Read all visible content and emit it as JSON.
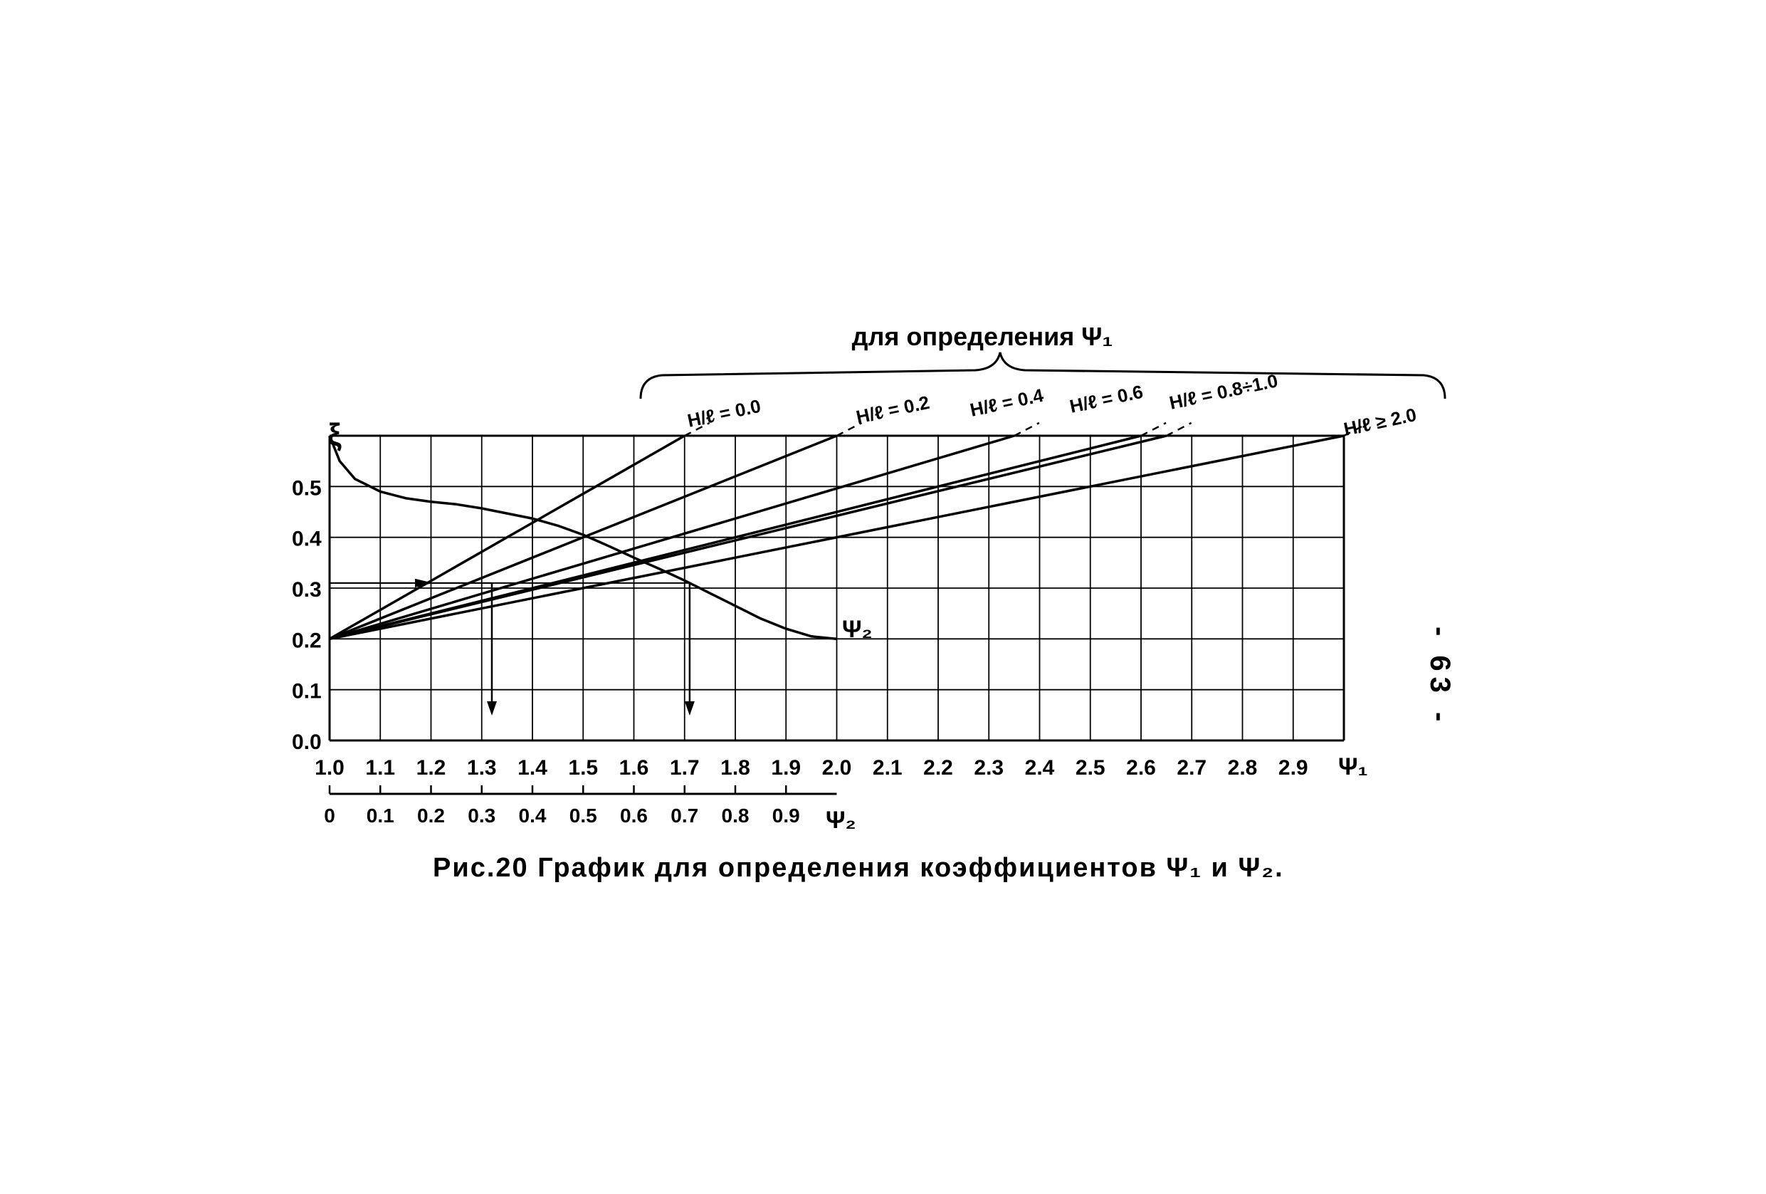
{
  "chart_data": {
    "type": "line",
    "title_top": "для определения Ψ₁",
    "ylabel": "ξ",
    "xlabel_psi1": "Ψ₁",
    "xlabel_psi2": "Ψ₂",
    "psi1_ticks": [
      "1.0",
      "1.1",
      "1.2",
      "1.3",
      "1.4",
      "1.5",
      "1.6",
      "1.7",
      "1.8",
      "1.9",
      "2.0",
      "2.1",
      "2.2",
      "2.3",
      "2.4",
      "2.5",
      "2.6",
      "2.7",
      "2.8",
      "2.9"
    ],
    "psi2_ticks": [
      "0",
      "0.1",
      "0.2",
      "0.3",
      "0.4",
      "0.5",
      "0.6",
      "0.7",
      "0.8",
      "0.9"
    ],
    "y_ticks": [
      "0.0",
      "0.1",
      "0.2",
      "0.3",
      "0.4",
      "0.5"
    ],
    "xlim_psi1": [
      1.0,
      3.0
    ],
    "xlim_psi2": [
      0,
      1.0
    ],
    "ylim": [
      0.0,
      0.6
    ],
    "grid": true,
    "series": [
      {
        "name": "H/ℓ = 0.0",
        "x": [
          1.0,
          1.7
        ],
        "y": [
          0.2,
          0.6
        ]
      },
      {
        "name": "H/ℓ = 0.2",
        "x": [
          1.0,
          2.0
        ],
        "y": [
          0.2,
          0.6
        ]
      },
      {
        "name": "H/ℓ = 0.4",
        "x": [
          1.0,
          2.35
        ],
        "y": [
          0.2,
          0.6
        ]
      },
      {
        "name": "H/ℓ = 0.6",
        "x": [
          1.0,
          2.6
        ],
        "y": [
          0.2,
          0.6
        ]
      },
      {
        "name": "H/ℓ = 0.8÷1.0",
        "x": [
          1.0,
          2.65
        ],
        "y": [
          0.2,
          0.6
        ]
      },
      {
        "name": "H/ℓ ≥ 2.0",
        "x": [
          1.0,
          3.0
        ],
        "y": [
          0.2,
          0.6
        ]
      },
      {
        "name": "Ψ₂",
        "x": [
          0.0,
          0.02,
          0.05,
          0.1,
          0.15,
          0.2,
          0.25,
          0.3,
          0.35,
          0.4,
          0.45,
          0.5,
          0.55,
          0.6,
          0.65,
          0.7,
          0.75,
          0.8,
          0.85,
          0.9,
          0.95,
          1.0
        ],
        "y": [
          0.6,
          0.55,
          0.515,
          0.49,
          0.477,
          0.47,
          0.465,
          0.457,
          0.447,
          0.437,
          0.423,
          0.405,
          0.383,
          0.36,
          0.338,
          0.315,
          0.29,
          0.265,
          0.24,
          0.22,
          0.205,
          0.2
        ]
      }
    ],
    "line_labels": [
      {
        "text": "H/ℓ = 0.0",
        "x": 1.73,
        "y": 0.62
      },
      {
        "text": "H/ℓ = 0.2",
        "x": 2.05,
        "y": 0.62
      },
      {
        "text": "H/ℓ = 0.4",
        "x": 2.32,
        "y": 0.62
      },
      {
        "text": "H/ℓ = 0.6",
        "x": 2.6,
        "y": 0.62
      },
      {
        "text": "H/ℓ = 0.8÷1.0",
        "x": 2.95,
        "y": 0.62
      },
      {
        "text": "H/ℓ ≥ 2.0",
        "x": 3.1,
        "y": 0.62
      }
    ],
    "curve_label": "Ψ₂",
    "example_readings": [
      {
        "xi": 0.31,
        "psi1": 1.32
      },
      {
        "xi": 0.31,
        "psi1": 1.71
      }
    ]
  },
  "caption": "Рис.20  График для определения коэффициентов Ψ₁ и Ψ₂.",
  "page_number": "- 63 -"
}
